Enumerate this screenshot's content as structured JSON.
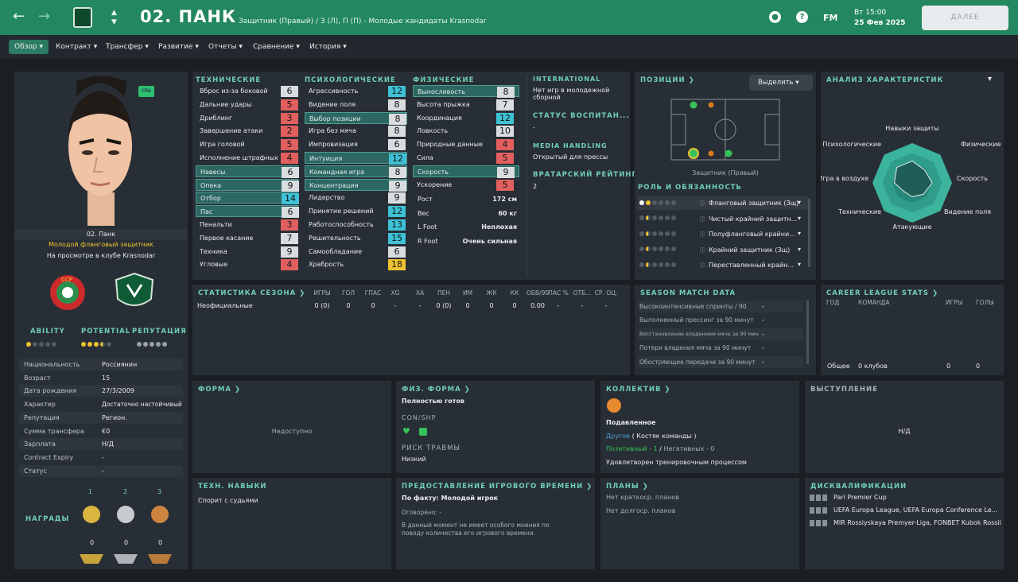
{
  "topbar": {
    "player_name": "02. ПАНК",
    "subtitle": "Защитник (Правый) / 3 (Л), П (П) - Молодые кандидаты Krasnodar",
    "fm_label": "FM",
    "day_time": "Вт 15:00",
    "date": "25 Фев 2025",
    "continue_label": "ДАЛЕЕ"
  },
  "menu": [
    "Обзор",
    "Контракт",
    "Трансфер",
    "Развитие",
    "Отчеты",
    "Сравнение",
    "История"
  ],
  "profile": {
    "face_badge": "Сбй",
    "name": "02. Панк",
    "role": "Молодой фланговый защитник",
    "status": "На просмотре в клубе Krasnodar",
    "ratings_labels": [
      "ABILITY",
      "POTENTIAL",
      "РЕПУТАЦИЯ"
    ],
    "ability_stars": 1,
    "potential_stars": 3.5,
    "reputation_stars": 0,
    "info": [
      {
        "k": "Национальность",
        "v": "Россиянин"
      },
      {
        "k": "Возраст",
        "v": "15"
      },
      {
        "k": "Дата рождения",
        "v": "27/3/2009"
      },
      {
        "k": "Характер",
        "v": "Достаточно настойчивый"
      },
      {
        "k": "Репутация",
        "v": "Регион."
      },
      {
        "k": "Сумма трансфера",
        "v": "€0"
      },
      {
        "k": "Зарплата",
        "v": "Н/Д"
      },
      {
        "k": "Contract Expiry",
        "v": "-"
      },
      {
        "k": "Статус",
        "v": "-"
      }
    ],
    "awards_label": "НАГРАДЫ",
    "medal_places": [
      "1",
      "2",
      "3"
    ],
    "medal_counts": [
      "0",
      "0",
      "0"
    ]
  },
  "attributes": {
    "headers": [
      "ТЕХНИЧЕСКИЕ",
      "ПСИХОЛОГИЧЕСКИЕ",
      "ФИЗИЧЕСКИЕ"
    ],
    "technical": [
      {
        "n": "Вброс из-за боковой",
        "v": "6",
        "c": "gray",
        "hl": false
      },
      {
        "n": "Дальние удары",
        "v": "5",
        "c": "red",
        "hl": false
      },
      {
        "n": "Дриблинг",
        "v": "3",
        "c": "red",
        "hl": false
      },
      {
        "n": "Завершение атаки",
        "v": "2",
        "c": "red",
        "hl": false
      },
      {
        "n": "Игра головой",
        "v": "5",
        "c": "red",
        "hl": false
      },
      {
        "n": "Исполнение штрафных",
        "v": "4",
        "c": "red",
        "hl": false
      },
      {
        "n": "Навесы",
        "v": "6",
        "c": "gray",
        "hl": true
      },
      {
        "n": "Опека",
        "v": "9",
        "c": "gray",
        "hl": true
      },
      {
        "n": "Отбор",
        "v": "14",
        "c": "cyan",
        "hl": true
      },
      {
        "n": "Пас",
        "v": "6",
        "c": "gray",
        "hl": true
      },
      {
        "n": "Пенальти",
        "v": "3",
        "c": "red",
        "hl": false
      },
      {
        "n": "Первое касание",
        "v": "7",
        "c": "gray",
        "hl": false
      },
      {
        "n": "Техника",
        "v": "9",
        "c": "gray",
        "hl": false
      },
      {
        "n": "Угловые",
        "v": "4",
        "c": "red",
        "hl": false
      }
    ],
    "mental": [
      {
        "n": "Агрессивность",
        "v": "12",
        "c": "cyan",
        "hl": false
      },
      {
        "n": "Видение поля",
        "v": "8",
        "c": "gray",
        "hl": false
      },
      {
        "n": "Выбор позиции",
        "v": "8",
        "c": "gray",
        "hl": true
      },
      {
        "n": "Игра без мяча",
        "v": "8",
        "c": "gray",
        "hl": false
      },
      {
        "n": "Импровизация",
        "v": "6",
        "c": "gray",
        "hl": false
      },
      {
        "n": "Интуиция",
        "v": "12",
        "c": "cyan",
        "hl": true
      },
      {
        "n": "Командная игра",
        "v": "8",
        "c": "gray",
        "hl": true
      },
      {
        "n": "Концентрация",
        "v": "9",
        "c": "gray",
        "hl": true
      },
      {
        "n": "Лидерство",
        "v": "9",
        "c": "gray",
        "hl": false
      },
      {
        "n": "Принятие решений",
        "v": "12",
        "c": "cyan",
        "hl": false
      },
      {
        "n": "Работоспособность",
        "v": "13",
        "c": "cyan",
        "hl": false
      },
      {
        "n": "Решительность",
        "v": "15",
        "c": "cyan",
        "hl": false
      },
      {
        "n": "Самообладание",
        "v": "6",
        "c": "gray",
        "hl": false
      },
      {
        "n": "Храбрость",
        "v": "18",
        "c": "yel",
        "hl": false
      }
    ],
    "physical": [
      {
        "n": "Выносливость",
        "v": "8",
        "c": "gray",
        "hl": true
      },
      {
        "n": "Высота прыжка",
        "v": "7",
        "c": "gray",
        "hl": false
      },
      {
        "n": "Координация",
        "v": "12",
        "c": "cyan",
        "hl": false
      },
      {
        "n": "Ловкость",
        "v": "10",
        "c": "gray",
        "hl": false
      },
      {
        "n": "Природные данные",
        "v": "4",
        "c": "red",
        "hl": false
      },
      {
        "n": "Сила",
        "v": "5",
        "c": "red",
        "hl": false
      },
      {
        "n": "Скорость",
        "v": "9",
        "c": "gray",
        "hl": true
      },
      {
        "n": "Ускорение",
        "v": "5",
        "c": "red",
        "hl": false
      }
    ],
    "bio": [
      {
        "k": "Рост",
        "v": "172 см"
      },
      {
        "k": "Вес",
        "v": "60 кг"
      },
      {
        "k": "L Foot",
        "v": "Неплохая"
      },
      {
        "k": "R Foot",
        "v": "Очень сильная"
      }
    ]
  },
  "side_info": {
    "international_h": "INTERNATIONAL",
    "international_v": "Нет игр в молодежной сборной",
    "training_h": "СТАТУС ВОСПИТАН...",
    "training_v": "-",
    "media_h": "MEDIA HANDLING",
    "media_v": "Открытый для прессы",
    "gk_h": "ВРАТАРСКИЙ РЕЙТИНГ",
    "gk_v": "2"
  },
  "positions": {
    "title": "ПОЗИЦИИ",
    "select_label": "Выделить",
    "pos_caption": "Защитник (Правый)",
    "roles_title": "РОЛЬ И ОБЯЗАННОСТЬ",
    "roles": [
      "Фланговый защитник (Зщ)",
      "Чистый крайний защитн...",
      "Полуфланговый крайни...",
      "Крайний защитник (Зщ)",
      "Переставленный крайн..."
    ]
  },
  "analysis": {
    "title": "АНАЛИЗ ХАРАКТЕРИСТИК",
    "labels": [
      "Навыки защиты",
      "Физические",
      "Скорость",
      "Видение поля",
      "Атакующие",
      "Технические",
      "Игра в воздухе",
      "Психологические"
    ],
    "values": [
      0.55,
      0.45,
      0.5,
      0.4,
      0.35,
      0.3,
      0.45,
      0.55
    ]
  },
  "season_stats": {
    "title": "СТАТИСТИКА СЕЗОНА",
    "headers": [
      "ИГРЫ",
      "ГОЛ",
      "ГПАС",
      "XG",
      "XA",
      "ПЕН",
      "ИМ",
      "ЖК",
      "КК",
      "ОБВ/90",
      "ПАС %",
      "ОТБ...",
      "СР. ОЦ."
    ],
    "row_label": "Неофициальные",
    "row": [
      "0 (0)",
      "0",
      "0",
      "-",
      "-",
      "0 (0)",
      "0",
      "0",
      "0",
      "0.00",
      "-",
      "-",
      "-"
    ]
  },
  "match_data": {
    "title": "SEASON MATCH DATA",
    "rows": [
      {
        "k": "Высокоинтенсивные спринты / 90",
        "v": "-"
      },
      {
        "k": "Выполненный прессинг за 90 минут",
        "v": "-"
      },
      {
        "k": "Восстановление владением мяча за 90 мин",
        "v": "-"
      },
      {
        "k": "Потери владения мяча за 90 минут",
        "v": "-"
      },
      {
        "k": "Обостряющие передачи за 90 минут",
        "v": "-"
      }
    ]
  },
  "career": {
    "title": "CAREER LEAGUE STATS",
    "headers": [
      "ГОД",
      "КОМАНДА",
      "ИГРЫ",
      "ГОЛЫ"
    ],
    "total_label": "Общее",
    "total_team": "0 клубов",
    "total_apps": "0",
    "total_goals": "0"
  },
  "form": {
    "title": "ФОРМА",
    "value": "Недоступно"
  },
  "fitness": {
    "title": "ФИЗ. ФОРМА",
    "status": "Полностью готов",
    "con_label": "CON/SHP",
    "injury_h": "РИСК ТРАВМЫ",
    "injury_v": "Низкий"
  },
  "squad": {
    "title": "КОЛЛЕКТИВ",
    "mood": "Подавленное",
    "group": "Другое",
    "group_suffix": "( Костяк команды )",
    "pos": "Позитивный - 1",
    "neg": "Негативных - 0",
    "training": "Удовлетворен тренировочным процессом"
  },
  "performance": {
    "title": "ВЫСТУПЛЕНИЕ",
    "value": "Н/Д"
  },
  "traits": {
    "title": "ТЕХН. НАВЫКИ",
    "items": [
      "Спорит с судьями"
    ]
  },
  "playtime": {
    "title": "ПРЕДОСТАВЛЕНИЕ ИГРОВОГО ВРЕМЕНИ",
    "actual": "По факту: Молодой игрок",
    "agreed": "Оговорено: -",
    "note": "В данный момент не имеет особого мнения по поводу количества его игрового времени."
  },
  "plans": {
    "title": "ПЛАНЫ",
    "short": "Нет краткоср. планов",
    "long": "Нет долгоср. планов"
  },
  "bans": {
    "title": "ДИСКВАЛИФИКАЦИИ",
    "items": [
      "Pari Premier Cup",
      "UEFA Europa League, UEFA Europa Conference Le...",
      "MIR Rossiyskaya Premyer-Liga, FONBET Kubok Rossii"
    ]
  },
  "colors": {
    "accent": "#23875f",
    "panel": "#282e35",
    "header_text": "#6fcfb4"
  }
}
